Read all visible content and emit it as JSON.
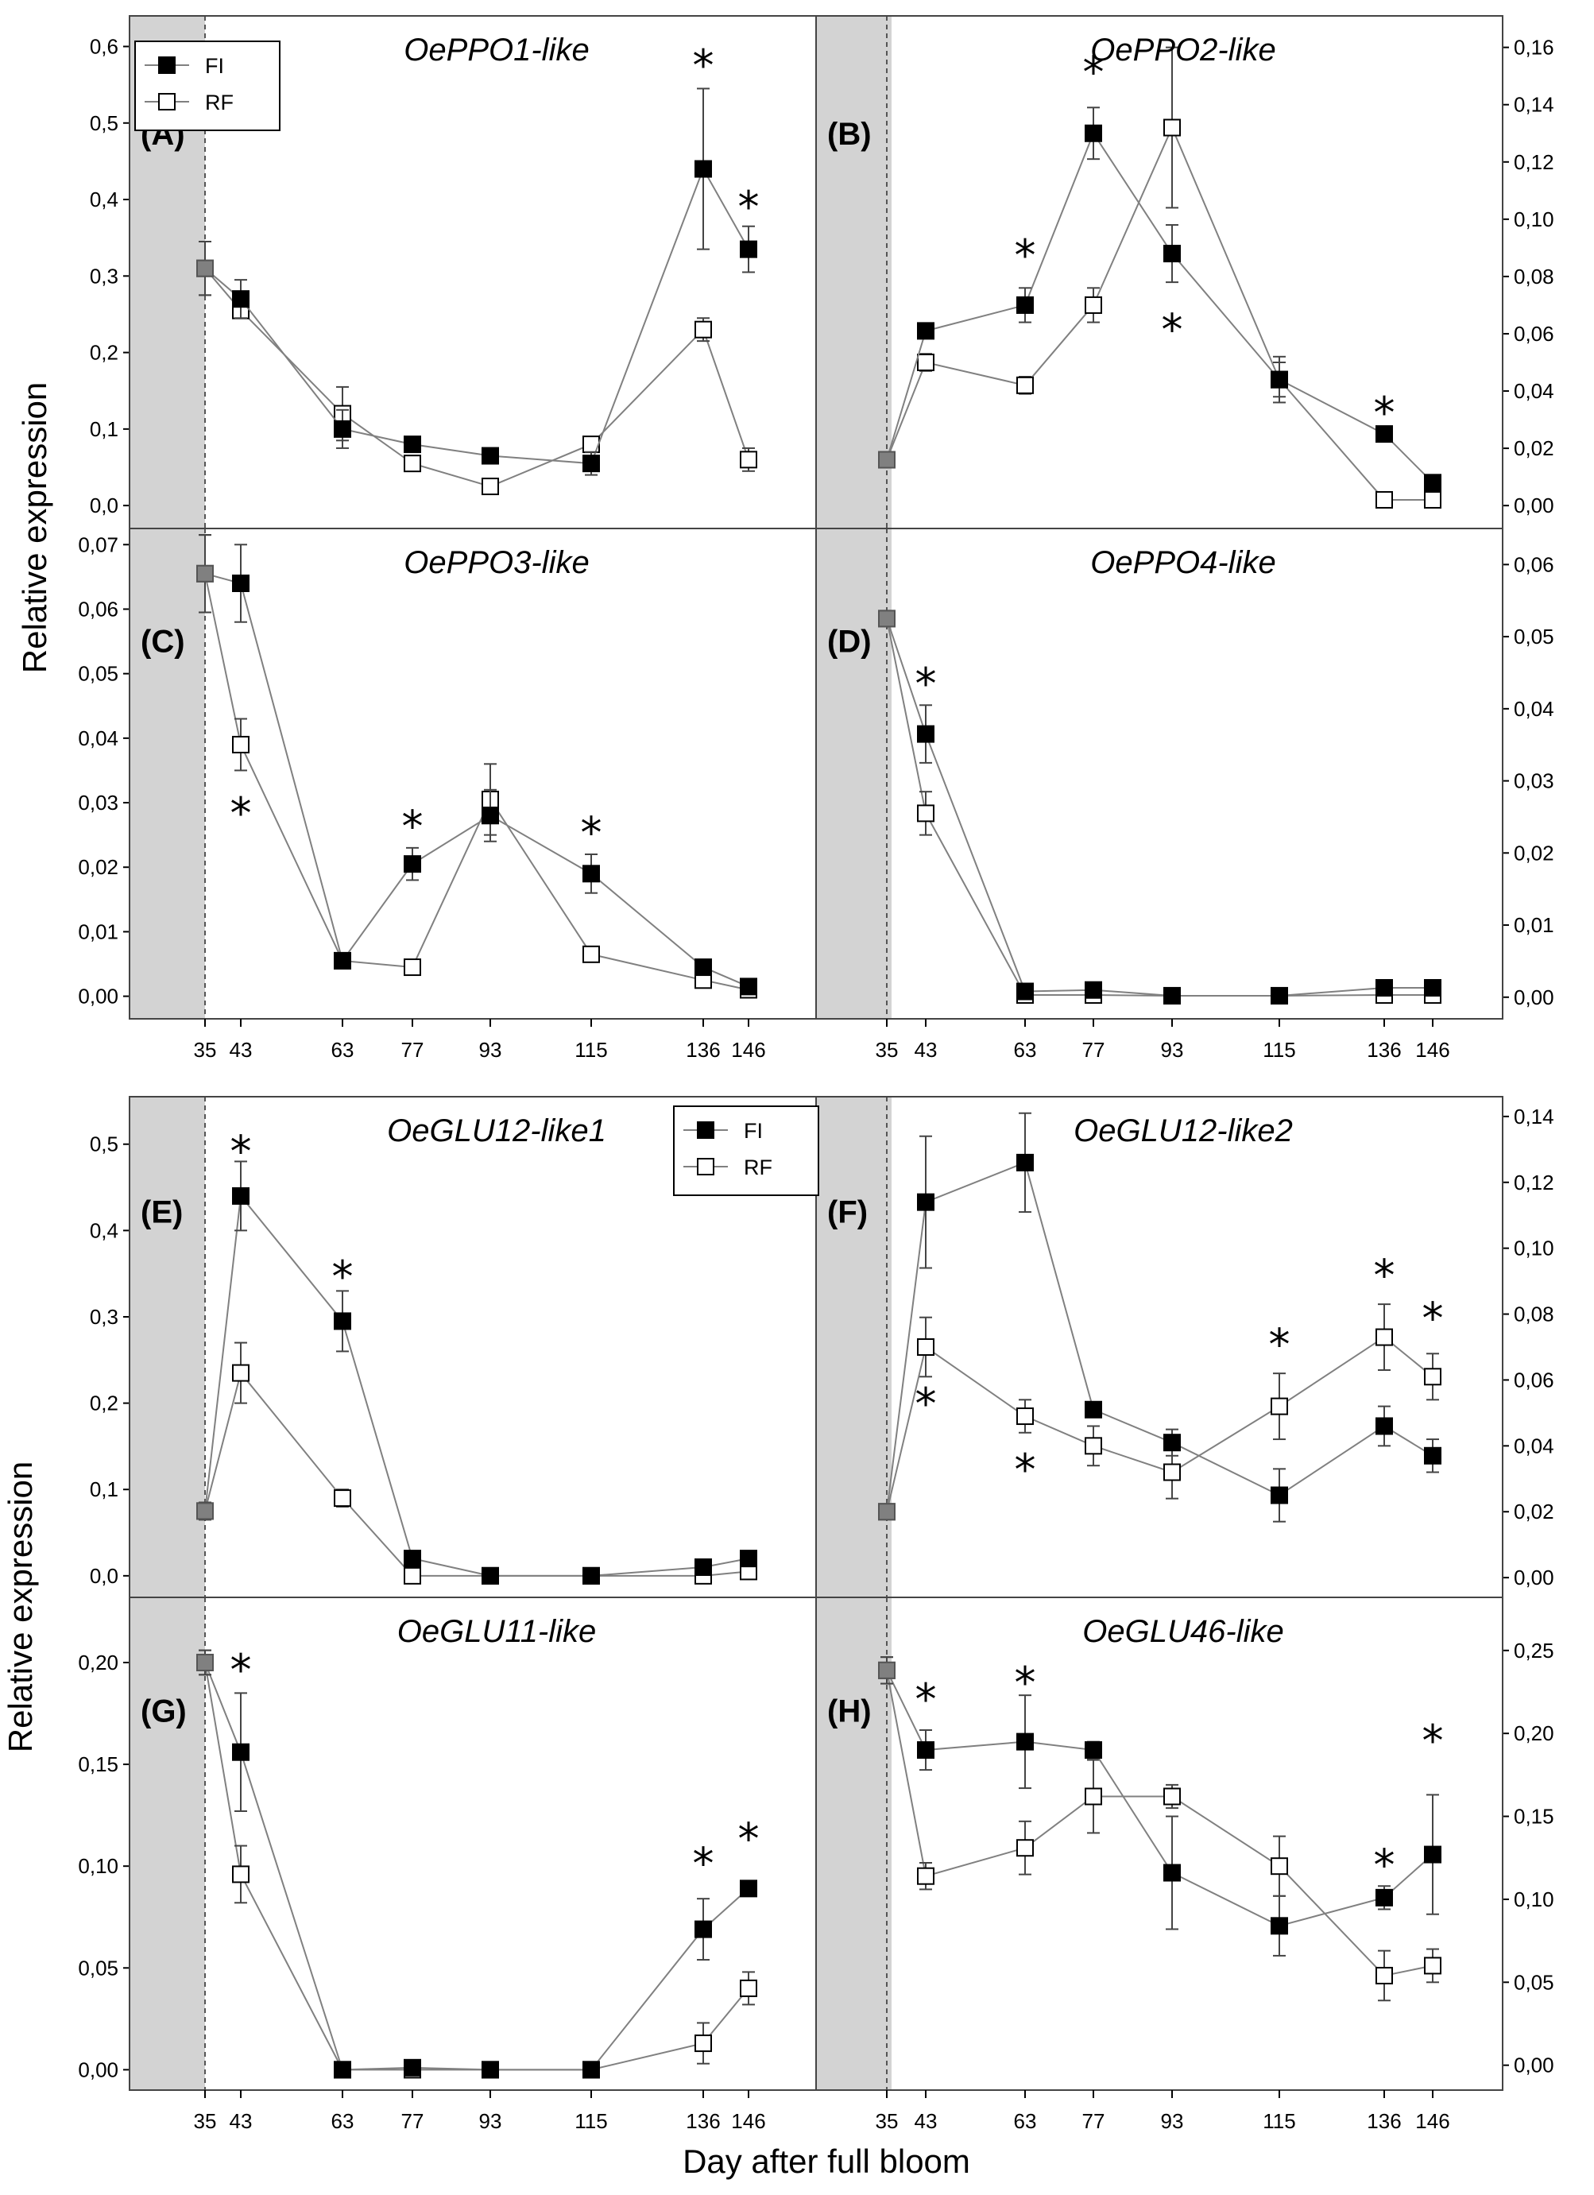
{
  "figure": {
    "ylabel": "Relative expression",
    "xlabel": "Day after full bloom",
    "x_ticks": [
      35,
      43,
      63,
      77,
      93,
      115,
      136,
      146
    ],
    "shaded_until": 35
  },
  "legend": {
    "fi_label": "FI",
    "rf_label": "RF"
  },
  "colors": {
    "fi": "#000000",
    "rf": "#ffffff",
    "first_point": "#808080",
    "shade": "#d3d3d3",
    "line": "#808080"
  },
  "chart_data": [
    {
      "type": "line",
      "label": "(A)",
      "title": "OePPO1-like",
      "ylim": [
        -0.03,
        0.64
      ],
      "yticks": [
        "0,0",
        "0,1",
        "0,2",
        "0,3",
        "0,4",
        "0,5",
        "0,6"
      ],
      "ytick_values": [
        0,
        0.1,
        0.2,
        0.3,
        0.4,
        0.5,
        0.6
      ],
      "series": [
        {
          "name": "FI",
          "values": [
            0.31,
            0.27,
            0.1,
            0.08,
            0.065,
            0.055,
            0.44,
            0.335
          ],
          "errors": [
            0.035,
            0.025,
            0.025,
            0.005,
            0.005,
            0.015,
            0.105,
            0.03
          ]
        },
        {
          "name": "RF",
          "values": [
            0.31,
            0.255,
            0.12,
            0.055,
            0.025,
            0.08,
            0.23,
            0.06
          ],
          "errors": [
            0.035,
            0.01,
            0.035,
            0.01,
            0.01,
            0.005,
            0.015,
            0.015
          ]
        }
      ],
      "stars": [
        {
          "x": 136,
          "y": 0.585
        },
        {
          "x": 146,
          "y": 0.4
        }
      ]
    },
    {
      "type": "line",
      "label": "(B)",
      "title": "OePPO2-like",
      "ylim": [
        -0.008,
        0.171
      ],
      "yticks": [
        "0,00",
        "0,02",
        "0,04",
        "0,06",
        "0,08",
        "0,10",
        "0,12",
        "0,14",
        "0,16"
      ],
      "ytick_values": [
        0,
        0.02,
        0.04,
        0.06,
        0.08,
        0.1,
        0.12,
        0.14,
        0.16
      ],
      "series": [
        {
          "name": "FI",
          "values": [
            0.016,
            0.061,
            0.07,
            0.13,
            0.088,
            0.044,
            0.025,
            0.008
          ],
          "errors": [
            0.002,
            0.002,
            0.006,
            0.009,
            0.01,
            0.006,
            0.002,
            0.001
          ]
        },
        {
          "name": "RF",
          "values": [
            0.016,
            0.05,
            0.042,
            0.07,
            0.132,
            0.044,
            0.002,
            0.002
          ],
          "errors": [
            0.002,
            0.003,
            0.003,
            0.006,
            0.028,
            0.008,
            0.001,
            0.001
          ]
        }
      ],
      "stars": [
        {
          "x": 63,
          "y": 0.09
        },
        {
          "x": 77,
          "y": 0.154
        },
        {
          "x": 93,
          "y": 0.064
        },
        {
          "x": 136,
          "y": 0.035
        }
      ]
    },
    {
      "type": "line",
      "label": "(C)",
      "title": "OePPO3-like",
      "ylim": [
        -0.0035,
        0.0725
      ],
      "yticks": [
        "0,00",
        "0,01",
        "0,02",
        "0,03",
        "0,04",
        "0,05",
        "0,06",
        "0,07"
      ],
      "ytick_values": [
        0,
        0.01,
        0.02,
        0.03,
        0.04,
        0.05,
        0.06,
        0.07
      ],
      "series": [
        {
          "name": "FI",
          "values": [
            0.0655,
            0.064,
            0.0055,
            0.0205,
            0.028,
            0.019,
            0.0045,
            0.0015
          ],
          "errors": [
            0.006,
            0.006,
            0.001,
            0.0025,
            0.004,
            0.003,
            0.001,
            0.0005
          ]
        },
        {
          "name": "RF",
          "values": [
            0.0655,
            0.039,
            0.0055,
            0.0045,
            0.0305,
            0.0065,
            0.0025,
            0.001
          ],
          "errors": [
            0.006,
            0.004,
            0.001,
            0.0005,
            0.0055,
            0.001,
            0.0005,
            0.0005
          ]
        }
      ],
      "stars": [
        {
          "x": 43,
          "y": 0.0295
        },
        {
          "x": 77,
          "y": 0.0275
        },
        {
          "x": 115,
          "y": 0.0265
        }
      ]
    },
    {
      "type": "line",
      "label": "(D)",
      "title": "OePPO4-like",
      "ylim": [
        -0.003,
        0.065
      ],
      "yticks": [
        "0,00",
        "0,01",
        "0,02",
        "0,03",
        "0,04",
        "0,05",
        "0,06"
      ],
      "ytick_values": [
        0,
        0.01,
        0.02,
        0.03,
        0.04,
        0.05,
        0.06
      ],
      "series": [
        {
          "name": "FI",
          "values": [
            0.0525,
            0.0365,
            0.0008,
            0.001,
            0.0002,
            0.0002,
            0.0013,
            0.0013
          ],
          "errors": [
            0.001,
            0.004,
            0.0005,
            0.0005,
            0.0002,
            0.0002,
            0.0005,
            0.0005
          ]
        },
        {
          "name": "RF",
          "values": [
            0.0525,
            0.0255,
            0.0003,
            0.0003,
            0.0002,
            0.0002,
            0.0003,
            0.0003
          ],
          "errors": [
            0.001,
            0.003,
            0.0003,
            0.0003,
            0.0002,
            0.0002,
            0.0003,
            0.0003
          ]
        }
      ],
      "stars": [
        {
          "x": 43,
          "y": 0.0445
        }
      ]
    },
    {
      "type": "line",
      "label": "(E)",
      "title": "OeGLU12-like1",
      "ylim": [
        -0.025,
        0.555
      ],
      "yticks": [
        "0,0",
        "0,1",
        "0,2",
        "0,3",
        "0,4",
        "0,5"
      ],
      "ytick_values": [
        0,
        0.1,
        0.2,
        0.3,
        0.4,
        0.5
      ],
      "series": [
        {
          "name": "FI",
          "values": [
            0.075,
            0.44,
            0.295,
            0.02,
            0.0,
            0.0,
            0.01,
            0.02
          ],
          "errors": [
            0.01,
            0.04,
            0.035,
            0.005,
            0.005,
            0.005,
            0.005,
            0.005
          ]
        },
        {
          "name": "RF",
          "values": [
            0.075,
            0.235,
            0.09,
            0.0,
            0.0,
            0.0,
            0.0,
            0.005
          ],
          "errors": [
            0.01,
            0.035,
            0.01,
            0.003,
            0.003,
            0.003,
            0.003,
            0.003
          ]
        }
      ],
      "stars": [
        {
          "x": 43,
          "y": 0.5
        },
        {
          "x": 63,
          "y": 0.355
        }
      ]
    },
    {
      "type": "line",
      "label": "(F)",
      "title": "OeGLU12-like2",
      "ylim": [
        -0.006,
        0.146
      ],
      "yticks": [
        "0,00",
        "0,02",
        "0,04",
        "0,06",
        "0,08",
        "0,10",
        "0,12",
        "0,14"
      ],
      "ytick_values": [
        0,
        0.02,
        0.04,
        0.06,
        0.08,
        0.1,
        0.12,
        0.14
      ],
      "series": [
        {
          "name": "FI",
          "values": [
            0.02,
            0.114,
            0.126,
            0.051,
            0.041,
            0.025,
            0.046,
            0.037
          ],
          "errors": [
            0.002,
            0.02,
            0.015,
            0.002,
            0.004,
            0.008,
            0.006,
            0.005
          ]
        },
        {
          "name": "RF",
          "values": [
            0.02,
            0.07,
            0.049,
            0.04,
            0.032,
            0.052,
            0.073,
            0.061
          ],
          "errors": [
            0.002,
            0.009,
            0.005,
            0.006,
            0.008,
            0.01,
            0.01,
            0.007
          ]
        }
      ],
      "stars": [
        {
          "x": 43,
          "y": 0.055
        },
        {
          "x": 63,
          "y": 0.035
        },
        {
          "x": 115,
          "y": 0.073
        },
        {
          "x": 136,
          "y": 0.094
        },
        {
          "x": 146,
          "y": 0.081
        }
      ]
    },
    {
      "type": "line",
      "label": "(G)",
      "title": "OeGLU11-like",
      "ylim": [
        -0.01,
        0.232
      ],
      "yticks": [
        "0,00",
        "0,05",
        "0,10",
        "0,15",
        "0,20"
      ],
      "ytick_values": [
        0,
        0.05,
        0.1,
        0.15,
        0.2
      ],
      "series": [
        {
          "name": "FI",
          "values": [
            0.2,
            0.156,
            0.0,
            0.001,
            0.0,
            0.0,
            0.069,
            0.089
          ],
          "errors": [
            0.006,
            0.029,
            0.002,
            0.002,
            0.002,
            0.002,
            0.015,
            0.003
          ]
        },
        {
          "name": "RF",
          "values": [
            0.2,
            0.096,
            0.0,
            0.0,
            0.0,
            0.0,
            0.013,
            0.04
          ],
          "errors": [
            0.006,
            0.014,
            0.002,
            0.002,
            0.002,
            0.002,
            0.01,
            0.008
          ]
        }
      ],
      "stars": [
        {
          "x": 43,
          "y": 0.2
        },
        {
          "x": 136,
          "y": 0.105
        },
        {
          "x": 146,
          "y": 0.117
        }
      ]
    },
    {
      "type": "line",
      "label": "(H)",
      "title": "OeGLU46-like",
      "ylim": [
        -0.015,
        0.282
      ],
      "yticks": [
        "0,00",
        "0,05",
        "0,10",
        "0,15",
        "0,20",
        "0,25"
      ],
      "ytick_values": [
        0,
        0.05,
        0.1,
        0.15,
        0.2,
        0.25
      ],
      "series": [
        {
          "name": "FI",
          "values": [
            0.238,
            0.19,
            0.195,
            0.19,
            0.116,
            0.084,
            0.101,
            0.127
          ],
          "errors": [
            0.008,
            0.012,
            0.028,
            0.005,
            0.034,
            0.018,
            0.007,
            0.036
          ]
        },
        {
          "name": "RF",
          "values": [
            0.238,
            0.114,
            0.131,
            0.162,
            0.162,
            0.12,
            0.054,
            0.06
          ],
          "errors": [
            0.008,
            0.008,
            0.016,
            0.022,
            0.007,
            0.018,
            0.015,
            0.01
          ]
        }
      ],
      "stars": [
        {
          "x": 43,
          "y": 0.225
        },
        {
          "x": 63,
          "y": 0.235
        },
        {
          "x": 136,
          "y": 0.125
        },
        {
          "x": 146,
          "y": 0.2
        }
      ]
    }
  ]
}
